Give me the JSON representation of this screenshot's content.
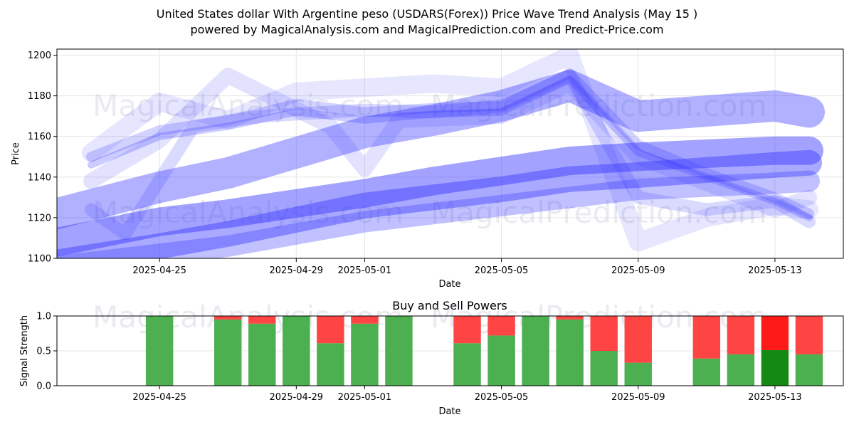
{
  "title_line1": "United States dollar With Argentine peso (USDARS(Forex)) Price Wave Trend Analysis (May 15 )",
  "title_line2": "powered by MagicalAnalysis.com and MagicalPrediction.com and Predict-Price.com",
  "watermarks": [
    "MagicalAnalysis.com",
    "MagicalPrediction.com"
  ],
  "colors": {
    "wave": "#3333ff",
    "buy": "#4caf50",
    "sell": "#ff4444",
    "buy_strong": "#138a13",
    "sell_strong": "#ff1a1a"
  },
  "chart_data": [
    {
      "type": "line",
      "title": "",
      "xlabel": "Date",
      "ylabel": "Price",
      "xlim": [
        "2025-04-22",
        "2025-05-15"
      ],
      "ylim": [
        1100,
        1203
      ],
      "yticks": [
        1100,
        1120,
        1140,
        1160,
        1180,
        1200
      ],
      "xticks": [
        "2025-04-25",
        "2025-04-29",
        "2025-05-01",
        "2025-05-05",
        "2025-05-09",
        "2025-05-13"
      ],
      "grid": true,
      "series": [
        {
          "x": [
            "2025-04-23",
            "2025-04-25",
            "2025-04-27",
            "2025-04-29",
            "2025-05-01",
            "2025-05-03",
            "2025-05-05",
            "2025-05-07",
            "2025-05-09",
            "2025-05-11",
            "2025-05-13",
            "2025-05-14"
          ],
          "values": [
            1150,
            1163,
            1168,
            1176,
            1172,
            1174,
            1175,
            1191,
            1156,
            1142,
            1130,
            1122
          ]
        },
        {
          "x": [
            "2025-04-23",
            "2025-04-25",
            "2025-04-27",
            "2025-04-29",
            "2025-05-01",
            "2025-05-03",
            "2025-05-05",
            "2025-05-07",
            "2025-05-09",
            "2025-05-11",
            "2025-05-13",
            "2025-05-14"
          ],
          "values": [
            1146,
            1160,
            1165,
            1172,
            1168,
            1171,
            1172,
            1188,
            1152,
            1140,
            1128,
            1120
          ]
        },
        {
          "x": [
            "2025-04-23",
            "2025-04-24",
            "2025-04-26",
            "2025-04-28",
            "2025-05-01",
            "2025-05-03",
            "2025-05-05",
            "2025-05-07",
            "2025-05-09",
            "2025-05-11",
            "2025-05-13",
            "2025-05-14"
          ],
          "values": [
            1124,
            1112,
            1165,
            1170,
            1173,
            1172,
            1175,
            1190,
            1130,
            1124,
            1128,
            1118
          ]
        },
        {
          "x": [
            "2025-04-23",
            "2025-04-25",
            "2025-04-27",
            "2025-04-29",
            "2025-05-01",
            "2025-05-03",
            "2025-05-05",
            "2025-05-07",
            "2025-05-09",
            "2025-05-11",
            "2025-05-13",
            "2025-05-14"
          ],
          "values": [
            1152,
            1177,
            1168,
            1182,
            1184,
            1186,
            1184,
            1200,
            1108,
            1120,
            1126,
            1124
          ]
        },
        {
          "x": [
            "2025-04-23",
            "2025-04-25",
            "2025-04-27",
            "2025-04-30",
            "2025-05-01",
            "2025-05-02",
            "2025-05-05",
            "2025-05-07",
            "2025-05-09",
            "2025-05-13",
            "2025-05-14"
          ],
          "values": [
            1138,
            1158,
            1190,
            1165,
            1144,
            1168,
            1170,
            1186,
            1150,
            1124,
            1130
          ]
        },
        {
          "x": [
            "2025-04-22",
            "2025-04-25",
            "2025-04-27",
            "2025-04-29",
            "2025-05-01",
            "2025-05-03",
            "2025-05-05",
            "2025-05-07",
            "2025-05-09",
            "2025-05-13",
            "2025-05-14"
          ],
          "values": [
            1122,
            1135,
            1142,
            1152,
            1162,
            1168,
            1175,
            1185,
            1170,
            1175,
            1172
          ]
        },
        {
          "x": [
            "2025-04-22",
            "2025-04-25",
            "2025-04-27",
            "2025-04-29",
            "2025-05-01",
            "2025-05-03",
            "2025-05-05",
            "2025-05-07",
            "2025-05-09",
            "2025-05-13",
            "2025-05-14"
          ],
          "values": [
            1108,
            1118,
            1122,
            1127,
            1132,
            1138,
            1143,
            1148,
            1150,
            1153,
            1153
          ]
        },
        {
          "x": [
            "2025-04-22",
            "2025-04-25",
            "2025-04-27",
            "2025-04-29",
            "2025-05-01",
            "2025-05-03",
            "2025-05-05",
            "2025-05-07",
            "2025-05-09",
            "2025-05-13",
            "2025-05-14"
          ],
          "values": [
            1098,
            1106,
            1112,
            1119,
            1126,
            1130,
            1134,
            1139,
            1141,
            1146,
            1147
          ]
        },
        {
          "x": [
            "2025-04-22",
            "2025-04-25",
            "2025-04-27",
            "2025-04-29",
            "2025-05-01",
            "2025-05-03",
            "2025-05-05",
            "2025-05-07",
            "2025-05-09",
            "2025-05-13",
            "2025-05-14"
          ],
          "values": [
            1096,
            1102,
            1106,
            1112,
            1118,
            1122,
            1126,
            1130,
            1134,
            1137,
            1138
          ]
        }
      ]
    },
    {
      "type": "bar",
      "title": "Buy and Sell Powers",
      "xlabel": "Date",
      "ylabel": "Signal Strength",
      "ylim": [
        0,
        1
      ],
      "yticks": [
        "0.0",
        "0.5",
        "1.0"
      ],
      "xticks": [
        "2025-04-25",
        "2025-04-29",
        "2025-05-01",
        "2025-05-05",
        "2025-05-09",
        "2025-05-13"
      ],
      "grid": true,
      "categories": [
        "2025-04-25",
        "2025-04-27",
        "2025-04-28",
        "2025-04-29",
        "2025-04-30",
        "2025-05-01",
        "2025-05-02",
        "2025-05-04",
        "2025-05-05",
        "2025-05-06",
        "2025-05-07",
        "2025-05-08",
        "2025-05-09",
        "2025-05-11",
        "2025-05-12",
        "2025-05-13",
        "2025-05-14"
      ],
      "series": [
        {
          "values": [
            1.0,
            0.95,
            0.89,
            1.0,
            0.61,
            0.89,
            1.0,
            0.61,
            0.72,
            1.0,
            0.95,
            0.5,
            0.33,
            0.39,
            0.45,
            0.51,
            0.45
          ]
        },
        {
          "values": [
            0.0,
            0.05,
            0.11,
            0.0,
            0.39,
            0.11,
            0.0,
            0.39,
            0.28,
            0.0,
            0.05,
            0.5,
            0.67,
            0.61,
            0.55,
            0.49,
            0.55
          ]
        }
      ],
      "highlight_category": "2025-05-13"
    }
  ]
}
